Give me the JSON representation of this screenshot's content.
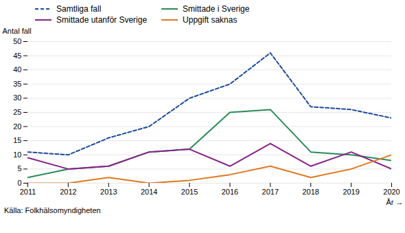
{
  "chart_data": {
    "type": "line",
    "x": [
      2011,
      2012,
      2013,
      2014,
      2015,
      2016,
      2017,
      2018,
      2019,
      2020
    ],
    "series": [
      {
        "name": "Samtliga fall",
        "color": "#1a4a9a",
        "line_style": "dashed",
        "values": [
          11,
          10,
          16,
          20,
          30,
          35,
          46,
          27,
          26,
          23
        ]
      },
      {
        "name": "Smittade i Sverige",
        "color": "#2a8a57",
        "line_style": "solid",
        "values": [
          2,
          5,
          6,
          11,
          12,
          25,
          26,
          11,
          10,
          8
        ]
      },
      {
        "name": "Smittade utanför Sverige",
        "color": "#882288",
        "line_style": "solid",
        "values": [
          9,
          5,
          6,
          11,
          12,
          6,
          14,
          6,
          11,
          5
        ]
      },
      {
        "name": "Uppgift saknas",
        "color": "#e07820",
        "line_style": "solid",
        "values": [
          0,
          0,
          2,
          0,
          1,
          3,
          6,
          2,
          5,
          10
        ]
      }
    ],
    "xlabel": "År",
    "ylabel": "Antal fall",
    "caption": "Källa: Folkhälsomyndigheten",
    "xlim": [
      2011,
      2020
    ],
    "xticks": [
      2011,
      2012,
      2013,
      2014,
      2015,
      2016,
      2017,
      2018,
      2019,
      2020
    ],
    "ylim": [
      0,
      50
    ],
    "yticks": [
      0,
      5,
      10,
      15,
      20,
      25,
      30,
      35,
      40,
      45,
      50
    ],
    "grid": true,
    "legend": "top"
  }
}
